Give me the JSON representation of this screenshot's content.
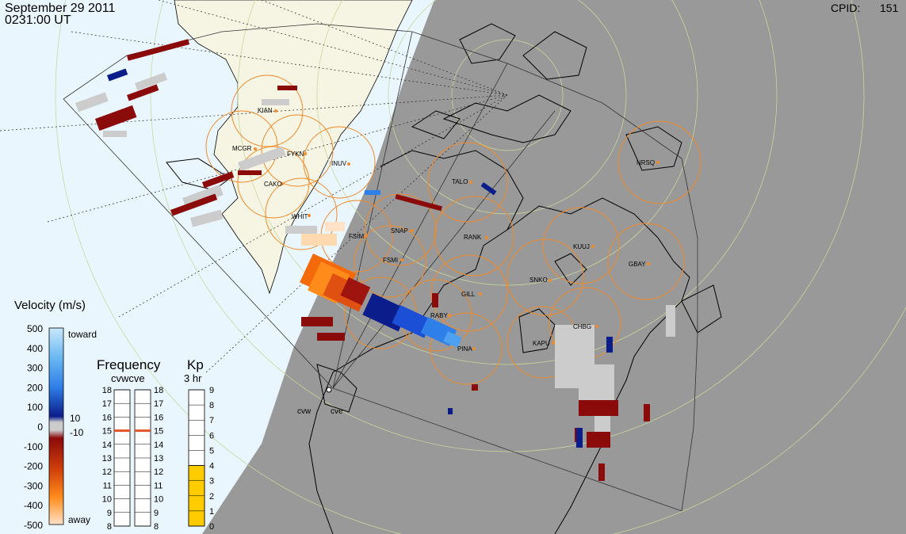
{
  "header": {
    "date": "September 29 2011",
    "time": "0231:00 UT",
    "cpid_label": "CPID:",
    "cpid_value": "151"
  },
  "colors": {
    "night": "#999999",
    "day": "#eaf6fd",
    "land_day": "#f6f4e2",
    "station_circle": "#f08a2a",
    "kp_fill": "#ffcc00",
    "freq_marker": "#e0562a"
  },
  "stations": [
    {
      "code": "KIAN"
    },
    {
      "code": "MCGR"
    },
    {
      "code": "FYKN"
    },
    {
      "code": "INUV"
    },
    {
      "code": "CAKO"
    },
    {
      "code": "WHIT"
    },
    {
      "code": "FSIM"
    },
    {
      "code": "SNAP"
    },
    {
      "code": "FSMI"
    },
    {
      "code": "TALO"
    },
    {
      "code": "RANK"
    },
    {
      "code": "NRSQ"
    },
    {
      "code": "KUUJ"
    },
    {
      "code": "GBAY"
    },
    {
      "code": "SNKO"
    },
    {
      "code": "GILL"
    },
    {
      "code": "CHBG"
    },
    {
      "code": "KAPU"
    },
    {
      "code": "RABY"
    },
    {
      "code": "PINA"
    }
  ],
  "radars": [
    "cvw",
    "cve"
  ],
  "velocity_scale": {
    "title": "Velocity (m/s)",
    "ticks": [
      "500",
      "400",
      "300",
      "200",
      "100",
      "0",
      "-100",
      "-200",
      "-300",
      "-400",
      "-500"
    ],
    "toward": "toward",
    "away": "away",
    "pos_threshold": "10",
    "neg_threshold": "-10"
  },
  "frequency": {
    "title": "Frequency",
    "subtitle": "cvwcve",
    "ticks": [
      "18",
      "17",
      "16",
      "15",
      "14",
      "13",
      "12",
      "11",
      "10",
      "9",
      "8"
    ],
    "cvw_value": 15,
    "cve_value": 15
  },
  "kp": {
    "title": "Kp",
    "subtitle": "3 hr",
    "ticks": [
      "9",
      "8",
      "7",
      "6",
      "5",
      "4",
      "3",
      "2",
      "1",
      "0"
    ],
    "value": 4
  }
}
